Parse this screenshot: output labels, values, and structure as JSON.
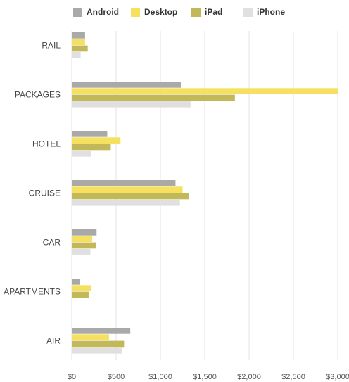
{
  "chart_data": {
    "type": "bar",
    "orientation": "horizontal",
    "categories": [
      "RAIL",
      "PACKAGES",
      "HOTEL",
      "CRUISE",
      "CAR",
      "APARTMENTS",
      "AIR"
    ],
    "series": [
      {
        "name": "Android",
        "color": "#a9a9a9",
        "values": [
          150,
          1230,
          400,
          1170,
          280,
          90,
          660
        ]
      },
      {
        "name": "Desktop",
        "color": "#f5e15f",
        "values": [
          150,
          3000,
          550,
          1250,
          230,
          220,
          420
        ]
      },
      {
        "name": "iPad",
        "color": "#c2b85a",
        "values": [
          180,
          1840,
          440,
          1320,
          270,
          190,
          590
        ]
      },
      {
        "name": "iPhone",
        "color": "#e0e0e0",
        "values": [
          100,
          1340,
          220,
          1220,
          210,
          0,
          570
        ]
      }
    ],
    "x_ticks": [
      "$0",
      "$500",
      "$1,000",
      "$1,500",
      "$2,000",
      "$2,500",
      "$3,000"
    ],
    "x_tick_values": [
      0,
      500,
      1000,
      1500,
      2000,
      2500,
      3000
    ],
    "xlim": [
      0,
      3000
    ],
    "grid": "vertical",
    "legend_position": "top"
  }
}
